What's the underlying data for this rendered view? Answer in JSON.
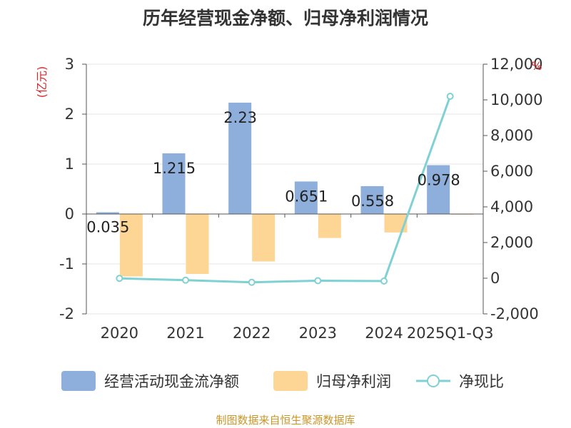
{
  "title": "历年经营现金净额、归母净利润情况",
  "source": "制图数据来自恒生聚源数据库",
  "chart_data": {
    "type": "bar+line",
    "categories": [
      "2020",
      "2021",
      "2022",
      "2023",
      "2024",
      "2025Q1-Q3"
    ],
    "left_axis": {
      "unit": "(亿元)",
      "ylim": [
        -2,
        3
      ],
      "ticks": [
        3,
        2,
        1,
        0,
        -1,
        -2
      ]
    },
    "right_axis": {
      "unit": "%",
      "ylim": [
        -2000,
        12000
      ],
      "ticks": [
        "12,000",
        "10,000",
        "8,000",
        "6,000",
        "4,000",
        "2,000",
        "0",
        "-2,000"
      ]
    },
    "series": [
      {
        "name": "经营活动现金流净额",
        "type": "bar",
        "axis": "left",
        "color": "#8eaedb",
        "values": [
          0.035,
          1.215,
          2.23,
          0.651,
          0.558,
          0.978
        ],
        "labels": [
          "0.035",
          "1.215",
          "2.23",
          "0.651",
          "0.558",
          "0.978"
        ]
      },
      {
        "name": "归母净利润",
        "type": "bar",
        "axis": "left",
        "color": "#fdd696",
        "values": [
          -1.25,
          -1.2,
          -0.95,
          -0.48,
          -0.37,
          -0.01
        ]
      },
      {
        "name": "净现比",
        "type": "line",
        "axis": "right",
        "color": "#7fd1d3",
        "values": [
          -10,
          -110,
          -230,
          -140,
          -160,
          10200
        ]
      }
    ]
  }
}
